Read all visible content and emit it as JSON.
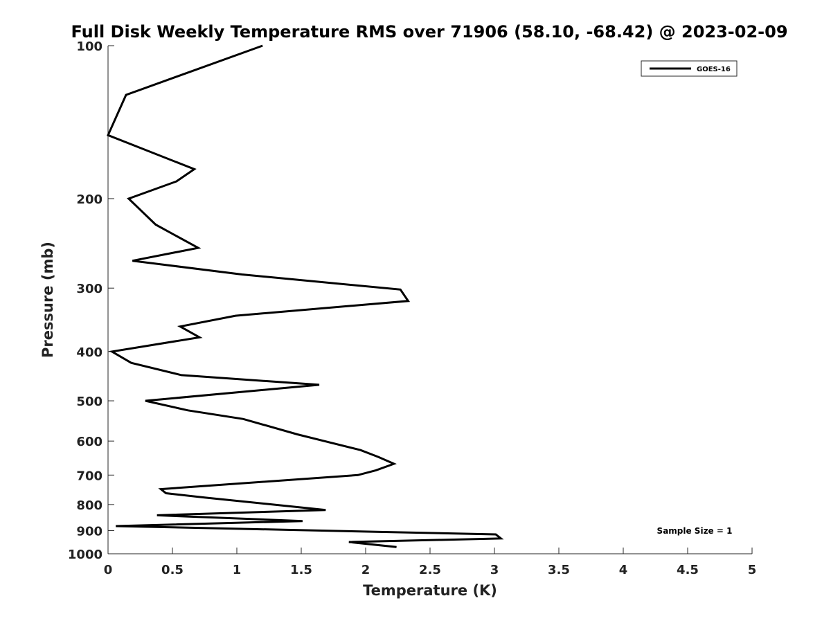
{
  "chart_data": {
    "type": "line",
    "title": "Full Disk Weekly Temperature RMS over 71906 (58.10, -68.42) @ 2023-02-09",
    "xlabel": "Temperature (K)",
    "ylabel": "Pressure (mb)",
    "xlim": [
      0,
      5
    ],
    "ylim": [
      1000,
      100
    ],
    "y_scale": "log",
    "y_reversed": true,
    "grid": false,
    "x_ticks": [
      0,
      0.5,
      1,
      1.5,
      2,
      2.5,
      3,
      3.5,
      4,
      4.5,
      5
    ],
    "x_tick_labels": [
      "0",
      "0.5",
      "1",
      "1.5",
      "2",
      "2.5",
      "3",
      "3.5",
      "4",
      "4.5",
      "5"
    ],
    "y_ticks": [
      100,
      200,
      300,
      400,
      500,
      600,
      700,
      800,
      900,
      1000
    ],
    "y_tick_labels": [
      "100",
      "200",
      "300",
      "400",
      "500",
      "600",
      "700",
      "800",
      "900",
      "1000"
    ],
    "legend_position": "top-right",
    "series": [
      {
        "name": "GOES-16",
        "color": "#000000",
        "points": [
          {
            "t": 1.2,
            "p": 100
          },
          {
            "t": 0.14,
            "p": 125
          },
          {
            "t": 0.0,
            "p": 150
          },
          {
            "t": 0.67,
            "p": 175
          },
          {
            "t": 0.53,
            "p": 185
          },
          {
            "t": 0.16,
            "p": 200
          },
          {
            "t": 0.37,
            "p": 225
          },
          {
            "t": 0.7,
            "p": 250
          },
          {
            "t": 0.19,
            "p": 265
          },
          {
            "t": 1.04,
            "p": 282
          },
          {
            "t": 2.27,
            "p": 302
          },
          {
            "t": 2.33,
            "p": 318
          },
          {
            "t": 0.99,
            "p": 340
          },
          {
            "t": 0.56,
            "p": 357
          },
          {
            "t": 0.71,
            "p": 375
          },
          {
            "t": 0.03,
            "p": 400
          },
          {
            "t": 0.18,
            "p": 421
          },
          {
            "t": 0.57,
            "p": 445
          },
          {
            "t": 1.64,
            "p": 465
          },
          {
            "t": 0.29,
            "p": 500
          },
          {
            "t": 0.62,
            "p": 522
          },
          {
            "t": 1.05,
            "p": 543
          },
          {
            "t": 1.47,
            "p": 582
          },
          {
            "t": 1.96,
            "p": 625
          },
          {
            "t": 2.1,
            "p": 645
          },
          {
            "t": 2.22,
            "p": 665
          },
          {
            "t": 2.08,
            "p": 685
          },
          {
            "t": 1.94,
            "p": 700
          },
          {
            "t": 0.41,
            "p": 746
          },
          {
            "t": 0.45,
            "p": 760
          },
          {
            "t": 0.75,
            "p": 775
          },
          {
            "t": 1.69,
            "p": 820
          },
          {
            "t": 0.38,
            "p": 840
          },
          {
            "t": 1.51,
            "p": 862
          },
          {
            "t": 0.06,
            "p": 882
          },
          {
            "t": 3.01,
            "p": 916
          },
          {
            "t": 3.05,
            "p": 933
          },
          {
            "t": 1.87,
            "p": 948
          },
          {
            "t": 2.24,
            "p": 970
          }
        ]
      }
    ],
    "annotations": [
      "Sample Size = 1"
    ]
  }
}
